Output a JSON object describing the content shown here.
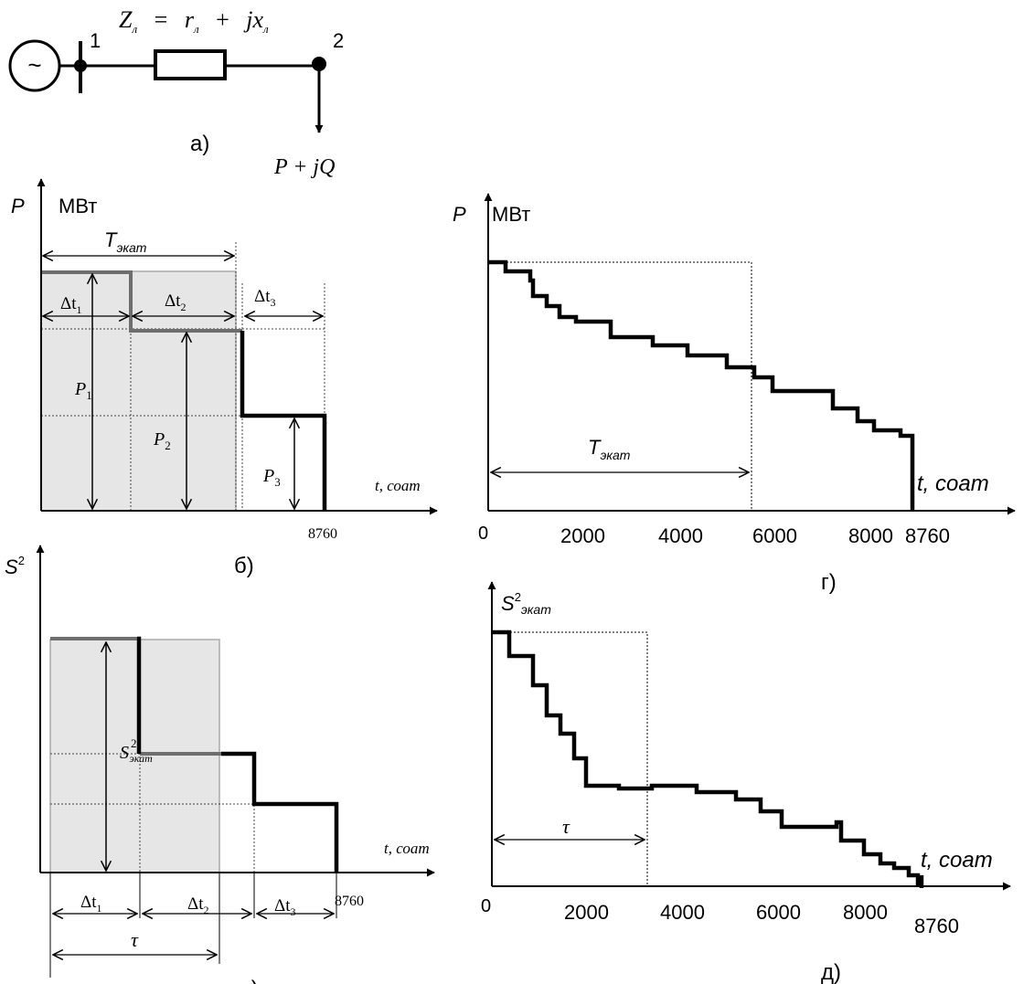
{
  "a": {
    "impedance_Z": "Z",
    "impedance_Z_sub": "л",
    "impedance_eq": "=",
    "impedance_r": "r",
    "impedance_r_sub": "л",
    "impedance_plus": "+",
    "impedance_jx": "jx",
    "impedance_jx_sub": "л",
    "node1": "1",
    "node2": "2",
    "source_symbol": "~",
    "load": "P + jQ",
    "caption": "а)"
  },
  "b": {
    "y_axis": "P",
    "unit": "МВт",
    "T_label": "T",
    "T_sub": "экат",
    "dt1": "Δt",
    "dt1_sub": "1",
    "dt2": "Δt",
    "dt2_sub": "2",
    "dt3": "Δt",
    "dt3_sub": "3",
    "p1": "P",
    "p1_sub": "1",
    "p2": "P",
    "p2_sub": "2",
    "p3": "P",
    "p3_sub": "3",
    "x_axis": "t, соат",
    "x_end": "8760",
    "caption": "б)"
  },
  "g": {
    "y_axis": "P",
    "unit": "МВт",
    "T_label": "T",
    "T_sub": "экат",
    "x_axis": "t, соат",
    "ticks": [
      "0",
      "2000",
      "4000",
      "6000",
      "8000",
      "8760"
    ],
    "caption": "г)"
  },
  "v": {
    "y_axis": "S",
    "y_sup": "2",
    "s_label": "S",
    "s_sup": "2",
    "s_sub": "экат",
    "dt1": "Δt",
    "dt1_sub": "1",
    "dt2": "Δt",
    "dt2_sub": "2",
    "dt3": "Δt",
    "dt3_sub": "3",
    "tau": "τ",
    "x_axis": "t, соат",
    "x_end": "8760",
    "caption": "в)"
  },
  "d": {
    "y_axis": "S",
    "y_sup": "2",
    "y_sub": "экат",
    "tau": "τ",
    "x_axis": "t, соат",
    "ticks": [
      "0",
      "2000",
      "4000",
      "6000",
      "8000",
      "8760"
    ],
    "caption": "д)"
  },
  "colors": {
    "line": "#000000",
    "shade": "#e6e6e6",
    "gray_step": "#6e6e6e"
  }
}
